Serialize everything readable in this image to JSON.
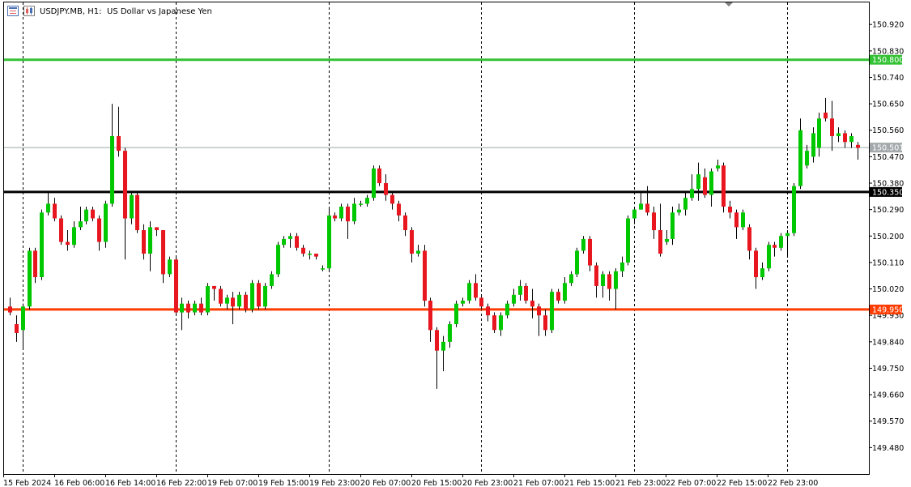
{
  "header": {
    "symbol_label": "USDJPY.MB, H1:",
    "description": "US Dollar vs Japanese Yen",
    "menu_icon": "list-icon",
    "chart_icon": "candlestick-chart-icon"
  },
  "colors": {
    "bull": "#00c800",
    "bear": "#e8161f",
    "wick": "#000000",
    "grid": "#000000",
    "resistance": "#33c233",
    "support": "#ff3c00",
    "pivot": "#000000",
    "last_price": "#9aaaa8",
    "last_price_badge": "#a3a8aa"
  },
  "chart_data": {
    "type": "candlestick",
    "title": "USDJPY.MB, H1:  US Dollar vs Japanese Yen",
    "ylim": [
      149.39,
      150.995
    ],
    "y_ticks": [
      "150.920",
      "150.830",
      "150.740",
      "150.650",
      "150.560",
      "150.470",
      "150.380",
      "150.290",
      "150.200",
      "150.110",
      "150.020",
      "149.930",
      "149.840",
      "149.750",
      "149.660",
      "149.570",
      "149.480"
    ],
    "x_ticks": [
      {
        "label": "15 Feb 2024",
        "bar": 0
      },
      {
        "label": "16 Feb 06:00",
        "bar": 8
      },
      {
        "label": "16 Feb 14:00",
        "bar": 16
      },
      {
        "label": "16 Feb 22:00",
        "bar": 24
      },
      {
        "label": "19 Feb 07:00",
        "bar": 32
      },
      {
        "label": "19 Feb 15:00",
        "bar": 40
      },
      {
        "label": "19 Feb 23:00",
        "bar": 48
      },
      {
        "label": "20 Feb 07:00",
        "bar": 56
      },
      {
        "label": "20 Feb 15:00",
        "bar": 64
      },
      {
        "label": "20 Feb 23:00",
        "bar": 72
      },
      {
        "label": "21 Feb 07:00",
        "bar": 80
      },
      {
        "label": "21 Feb 15:00",
        "bar": 88
      },
      {
        "label": "21 Feb 23:00",
        "bar": 96
      },
      {
        "label": "22 Feb 07:00",
        "bar": 104
      },
      {
        "label": "22 Feb 15:00",
        "bar": 112
      },
      {
        "label": "22 Feb 23:00",
        "bar": 120
      }
    ],
    "vgrid_bars": [
      2,
      26,
      50,
      74,
      98,
      122
    ],
    "levels": [
      {
        "name": "resistance",
        "price": 150.8,
        "label": "150.800"
      },
      {
        "name": "pivot",
        "price": 150.35,
        "label": "150.350"
      },
      {
        "name": "support",
        "price": 149.95,
        "label": "149.950"
      }
    ],
    "last_price": {
      "price": 150.501,
      "label": "150.501"
    },
    "candles": [
      [
        149.96,
        149.94,
        149.99,
        149.93
      ],
      [
        149.9,
        149.87,
        149.93,
        149.84
      ],
      [
        149.88,
        149.96,
        149.97,
        149.82
      ],
      [
        149.96,
        150.15,
        150.16,
        149.95
      ],
      [
        150.15,
        150.06,
        150.16,
        150.04
      ],
      [
        150.06,
        150.28,
        150.29,
        150.05
      ],
      [
        150.28,
        150.31,
        150.35,
        150.27
      ],
      [
        150.31,
        150.26,
        150.33,
        150.25
      ],
      [
        150.26,
        150.18,
        150.27,
        150.17
      ],
      [
        150.18,
        150.17,
        150.22,
        150.15
      ],
      [
        150.17,
        150.23,
        150.25,
        150.16
      ],
      [
        150.23,
        150.25,
        150.3,
        150.22
      ],
      [
        150.25,
        150.29,
        150.3,
        150.24
      ],
      [
        150.29,
        150.26,
        150.3,
        150.25
      ],
      [
        150.26,
        150.18,
        150.27,
        150.15
      ],
      [
        150.18,
        150.31,
        150.32,
        150.16
      ],
      [
        150.31,
        150.54,
        150.65,
        150.3
      ],
      [
        150.54,
        150.49,
        150.64,
        150.47
      ],
      [
        150.49,
        150.26,
        150.5,
        150.12
      ],
      [
        150.26,
        150.34,
        150.35,
        150.24
      ],
      [
        150.34,
        150.22,
        150.35,
        150.21
      ],
      [
        150.22,
        150.14,
        150.24,
        150.12
      ],
      [
        150.14,
        150.23,
        150.25,
        150.08
      ],
      [
        150.23,
        150.22,
        150.23,
        150.2
      ],
      [
        150.22,
        150.07,
        150.08,
        150.04
      ],
      [
        150.07,
        150.12,
        150.13,
        150.06
      ],
      [
        150.12,
        149.94,
        150.13,
        149.93
      ],
      [
        149.94,
        149.97,
        149.99,
        149.88
      ],
      [
        149.97,
        149.94,
        149.98,
        149.92
      ],
      [
        149.94,
        149.97,
        149.98,
        149.93
      ],
      [
        149.97,
        149.94,
        149.99,
        149.93
      ],
      [
        149.94,
        150.03,
        150.04,
        149.93
      ],
      [
        150.03,
        150.02,
        150.03,
        149.98
      ],
      [
        150.02,
        149.97,
        150.03,
        149.96
      ],
      [
        149.97,
        149.99,
        150.0,
        149.95
      ],
      [
        149.99,
        149.96,
        150.01,
        149.9
      ],
      [
        149.96,
        150.0,
        150.01,
        149.95
      ],
      [
        150.0,
        149.95,
        150.01,
        149.94
      ],
      [
        149.95,
        150.04,
        150.05,
        149.94
      ],
      [
        150.04,
        149.96,
        150.05,
        149.95
      ],
      [
        149.96,
        150.03,
        150.04,
        149.95
      ],
      [
        150.03,
        150.07,
        150.08,
        150.02
      ],
      [
        150.07,
        150.17,
        150.18,
        150.06
      ],
      [
        150.17,
        150.19,
        150.2,
        150.16
      ],
      [
        150.19,
        150.2,
        150.21,
        150.16
      ],
      [
        150.2,
        150.16,
        150.21,
        150.15
      ],
      [
        150.16,
        150.14,
        150.17,
        150.13
      ],
      [
        150.14,
        150.14,
        150.15,
        150.12
      ],
      [
        150.14,
        150.13,
        150.14,
        150.12
      ],
      [
        150.09,
        150.09,
        150.1,
        150.08
      ],
      [
        150.09,
        150.27,
        150.3,
        150.08
      ],
      [
        150.27,
        150.26,
        150.28,
        150.25
      ],
      [
        150.26,
        150.3,
        150.31,
        150.25
      ],
      [
        150.3,
        150.25,
        150.31,
        150.19
      ],
      [
        150.25,
        150.31,
        150.33,
        150.24
      ],
      [
        150.31,
        150.31,
        150.32,
        150.3
      ],
      [
        150.31,
        150.33,
        150.34,
        150.3
      ],
      [
        150.33,
        150.43,
        150.44,
        150.32
      ],
      [
        150.43,
        150.38,
        150.44,
        150.37
      ],
      [
        150.38,
        150.34,
        150.41,
        150.32
      ],
      [
        150.34,
        150.31,
        150.35,
        150.29
      ],
      [
        150.31,
        150.27,
        150.32,
        150.25
      ],
      [
        150.27,
        150.22,
        150.28,
        150.2
      ],
      [
        150.22,
        150.14,
        150.23,
        150.11
      ],
      [
        150.14,
        150.15,
        150.17,
        150.13
      ],
      [
        150.15,
        149.98,
        150.17,
        149.96
      ],
      [
        149.98,
        149.88,
        149.99,
        149.84
      ],
      [
        149.88,
        149.81,
        149.89,
        149.68
      ],
      [
        149.81,
        149.84,
        149.86,
        149.74
      ],
      [
        149.84,
        149.9,
        149.91,
        149.82
      ],
      [
        149.9,
        149.97,
        149.98,
        149.89
      ],
      [
        149.97,
        149.98,
        149.99,
        149.96
      ],
      [
        149.98,
        150.04,
        150.05,
        149.97
      ],
      [
        150.04,
        149.99,
        150.07,
        149.98
      ],
      [
        149.99,
        149.96,
        150.0,
        149.95
      ],
      [
        149.96,
        149.93,
        149.97,
        149.91
      ],
      [
        149.93,
        149.88,
        149.94,
        149.87
      ],
      [
        149.88,
        149.93,
        149.94,
        149.86
      ],
      [
        149.93,
        149.97,
        149.98,
        149.92
      ],
      [
        149.97,
        150.0,
        150.02,
        149.96
      ],
      [
        150.0,
        150.03,
        150.05,
        149.98
      ],
      [
        150.03,
        149.98,
        150.04,
        149.97
      ],
      [
        149.98,
        149.96,
        150.02,
        149.92
      ],
      [
        149.96,
        149.93,
        149.97,
        149.86
      ],
      [
        149.93,
        149.88,
        149.95,
        149.86
      ],
      [
        149.88,
        150.01,
        150.02,
        149.87
      ],
      [
        150.01,
        149.98,
        150.02,
        149.97
      ],
      [
        149.98,
        150.04,
        150.06,
        149.97
      ],
      [
        150.04,
        150.07,
        150.08,
        150.03
      ],
      [
        150.07,
        150.15,
        150.16,
        150.06
      ],
      [
        150.15,
        150.19,
        150.2,
        150.14
      ],
      [
        150.19,
        150.1,
        150.2,
        150.08
      ],
      [
        150.1,
        150.03,
        150.11,
        149.99
      ],
      [
        150.03,
        150.07,
        150.08,
        149.99
      ],
      [
        150.07,
        150.02,
        150.08,
        149.98
      ],
      [
        150.02,
        150.08,
        150.09,
        149.95
      ],
      [
        150.08,
        150.11,
        150.13,
        150.06
      ],
      [
        150.11,
        150.26,
        150.27,
        150.1
      ],
      [
        150.26,
        150.29,
        150.3,
        150.24
      ],
      [
        150.29,
        150.31,
        150.35,
        150.29
      ],
      [
        150.31,
        150.28,
        150.37,
        150.27
      ],
      [
        150.28,
        150.22,
        150.3,
        150.19
      ],
      [
        150.22,
        150.14,
        150.31,
        150.13
      ],
      [
        150.18,
        150.19,
        150.22,
        150.17
      ],
      [
        150.19,
        150.28,
        150.3,
        150.17
      ],
      [
        150.28,
        150.29,
        150.31,
        150.27
      ],
      [
        150.29,
        150.33,
        150.35,
        150.27
      ],
      [
        150.33,
        150.36,
        150.41,
        150.32
      ],
      [
        150.36,
        150.41,
        150.45,
        150.32
      ],
      [
        150.4,
        150.34,
        150.43,
        150.33
      ],
      [
        150.34,
        150.42,
        150.43,
        150.3
      ],
      [
        150.43,
        150.44,
        150.46,
        150.42
      ],
      [
        150.44,
        150.3,
        150.45,
        150.28
      ],
      [
        150.3,
        150.28,
        150.32,
        150.26
      ],
      [
        150.28,
        150.23,
        150.29,
        150.19
      ],
      [
        150.23,
        150.28,
        150.29,
        150.22
      ],
      [
        150.23,
        150.15,
        150.24,
        150.12
      ],
      [
        150.15,
        150.06,
        150.16,
        150.02
      ],
      [
        150.06,
        150.09,
        150.11,
        150.05
      ],
      [
        150.09,
        150.17,
        150.18,
        150.08
      ],
      [
        150.17,
        150.16,
        150.18,
        150.13
      ],
      [
        150.16,
        150.2,
        150.21,
        150.15
      ],
      [
        150.2,
        150.21,
        150.22,
        150.13
      ],
      [
        150.21,
        150.37,
        150.38,
        150.2
      ],
      [
        150.37,
        150.56,
        150.6,
        150.36
      ],
      [
        150.44,
        150.49,
        150.51,
        150.43
      ],
      [
        150.47,
        150.55,
        150.57,
        150.45
      ],
      [
        150.5,
        150.6,
        150.62,
        150.47
      ],
      [
        150.62,
        150.6,
        150.67,
        150.59
      ],
      [
        150.6,
        150.54,
        150.66,
        150.49
      ],
      [
        150.54,
        150.55,
        150.57,
        150.52
      ],
      [
        150.55,
        150.52,
        150.56,
        150.5
      ],
      [
        150.52,
        150.54,
        150.55,
        150.5
      ],
      [
        150.51,
        150.5,
        150.52,
        150.46
      ]
    ]
  }
}
